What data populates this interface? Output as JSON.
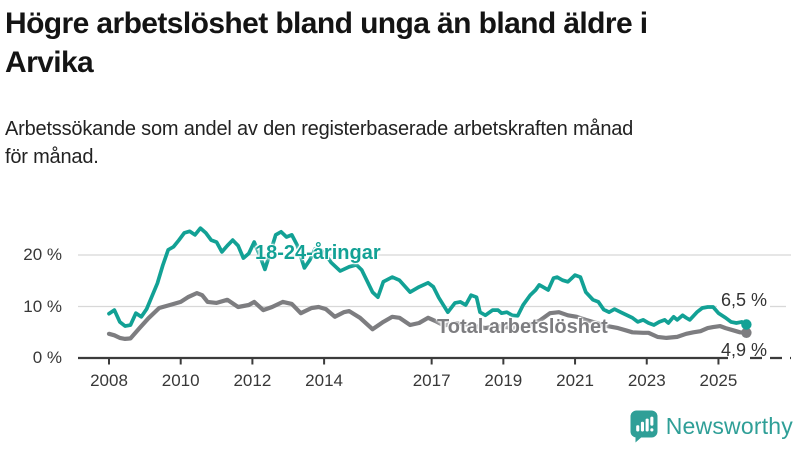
{
  "page": {
    "title_lines": [
      "Högre arbetslöshet bland unga än bland äldre i",
      "Arvika"
    ],
    "subtitle_lines": [
      "Arbetssökande som andel av den registerbaserade arbetskraften månad",
      "för månad."
    ]
  },
  "branding": {
    "logo_text": "Newsworthy",
    "logo_icon": "bar-chart-speech-bubble",
    "brand_color": "#2f9f97"
  },
  "colors": {
    "young_series": "#12a195",
    "total_series": "#7d7d80",
    "axis": "#3b3b3b",
    "grid": "#d8d8d8",
    "label_text": "#383838"
  },
  "chart_data": {
    "type": "line",
    "title": "Högre arbetslöshet bland unga än bland äldre i Arvika",
    "subtitle": "Arbetssökande som andel av den registerbaserade arbetskraften månad för månad.",
    "xlabel": "",
    "ylabel": "",
    "grid": true,
    "legend_position": "inline-labels",
    "x_range": [
      2007.1,
      2027.0
    ],
    "y_range": [
      0,
      29
    ],
    "x_ticks": [
      {
        "label": "2008",
        "year": 2008
      },
      {
        "label": "2010",
        "year": 2010
      },
      {
        "label": "2012",
        "year": 2012
      },
      {
        "label": "2014",
        "year": 2014
      },
      {
        "label": "2017",
        "year": 2017
      },
      {
        "label": "2019",
        "year": 2019
      },
      {
        "label": "2021",
        "year": 2021
      },
      {
        "label": "2023",
        "year": 2023
      },
      {
        "label": "2025",
        "year": 2025
      }
    ],
    "y_ticks": [
      {
        "label": "0 %",
        "value": 0
      },
      {
        "label": "10 %",
        "value": 10
      },
      {
        "label": "20 %",
        "value": 20
      }
    ],
    "series": [
      {
        "name": "Total arbetslöshet",
        "color": "#7d7d80",
        "end_label": "4,9 %",
        "end_value": 4.9,
        "points": [
          [
            2008.0,
            4.7
          ],
          [
            2008.15,
            4.4
          ],
          [
            2008.3,
            3.9
          ],
          [
            2008.45,
            3.7
          ],
          [
            2008.6,
            3.8
          ],
          [
            2008.85,
            5.8
          ],
          [
            2009.1,
            7.7
          ],
          [
            2009.4,
            9.7
          ],
          [
            2009.7,
            10.3
          ],
          [
            2010.0,
            10.9
          ],
          [
            2010.2,
            11.8
          ],
          [
            2010.45,
            12.6
          ],
          [
            2010.6,
            12.2
          ],
          [
            2010.75,
            10.9
          ],
          [
            2011.0,
            10.7
          ],
          [
            2011.3,
            11.3
          ],
          [
            2011.6,
            9.9
          ],
          [
            2011.9,
            10.3
          ],
          [
            2012.05,
            10.9
          ],
          [
            2012.3,
            9.3
          ],
          [
            2012.55,
            9.9
          ],
          [
            2012.85,
            10.9
          ],
          [
            2013.1,
            10.5
          ],
          [
            2013.35,
            8.7
          ],
          [
            2013.65,
            9.7
          ],
          [
            2013.85,
            9.9
          ],
          [
            2014.05,
            9.5
          ],
          [
            2014.3,
            8.0
          ],
          [
            2014.55,
            8.9
          ],
          [
            2014.7,
            9.1
          ],
          [
            2015.0,
            7.8
          ],
          [
            2015.35,
            5.6
          ],
          [
            2015.65,
            7.0
          ],
          [
            2015.9,
            8.0
          ],
          [
            2016.1,
            7.8
          ],
          [
            2016.4,
            6.4
          ],
          [
            2016.65,
            6.8
          ],
          [
            2016.9,
            7.8
          ],
          [
            2017.1,
            7.2
          ],
          [
            2017.35,
            6.3
          ],
          [
            2017.6,
            6.8
          ],
          [
            2017.9,
            6.6
          ],
          [
            2018.2,
            6.2
          ],
          [
            2018.5,
            5.8
          ],
          [
            2018.8,
            6.2
          ],
          [
            2019.1,
            6.0
          ],
          [
            2019.4,
            5.8
          ],
          [
            2019.7,
            6.4
          ],
          [
            2020.0,
            7.2
          ],
          [
            2020.3,
            8.7
          ],
          [
            2020.55,
            8.9
          ],
          [
            2020.8,
            8.3
          ],
          [
            2021.05,
            8.0
          ],
          [
            2021.3,
            7.4
          ],
          [
            2021.6,
            6.8
          ],
          [
            2021.9,
            6.2
          ],
          [
            2022.2,
            5.8
          ],
          [
            2022.45,
            5.3
          ],
          [
            2022.6,
            5.0
          ],
          [
            2022.9,
            4.9
          ],
          [
            2023.05,
            4.9
          ],
          [
            2023.3,
            4.1
          ],
          [
            2023.55,
            3.9
          ],
          [
            2023.85,
            4.1
          ],
          [
            2024.1,
            4.7
          ],
          [
            2024.3,
            5.0
          ],
          [
            2024.5,
            5.2
          ],
          [
            2024.7,
            5.8
          ],
          [
            2024.85,
            6.0
          ],
          [
            2025.05,
            6.2
          ],
          [
            2025.2,
            5.8
          ],
          [
            2025.4,
            5.4
          ],
          [
            2025.6,
            5.0
          ],
          [
            2025.78,
            4.9
          ]
        ]
      },
      {
        "name": "18-24-åringar",
        "color": "#12a195",
        "end_label": "6,5 %",
        "end_value": 6.5,
        "points": [
          [
            2008.0,
            8.6
          ],
          [
            2008.15,
            9.3
          ],
          [
            2008.3,
            7.0
          ],
          [
            2008.45,
            6.2
          ],
          [
            2008.6,
            6.4
          ],
          [
            2008.75,
            8.7
          ],
          [
            2008.9,
            8.0
          ],
          [
            2009.05,
            9.5
          ],
          [
            2009.2,
            12.0
          ],
          [
            2009.35,
            14.5
          ],
          [
            2009.5,
            18.0
          ],
          [
            2009.65,
            21.0
          ],
          [
            2009.8,
            21.6
          ],
          [
            2009.95,
            22.9
          ],
          [
            2010.1,
            24.3
          ],
          [
            2010.25,
            24.6
          ],
          [
            2010.4,
            23.9
          ],
          [
            2010.55,
            25.2
          ],
          [
            2010.7,
            24.3
          ],
          [
            2010.85,
            22.9
          ],
          [
            2011.0,
            22.5
          ],
          [
            2011.15,
            20.6
          ],
          [
            2011.3,
            21.8
          ],
          [
            2011.45,
            22.9
          ],
          [
            2011.6,
            21.8
          ],
          [
            2011.75,
            19.4
          ],
          [
            2011.9,
            20.3
          ],
          [
            2012.05,
            22.5
          ],
          [
            2012.2,
            20.0
          ],
          [
            2012.35,
            17.2
          ],
          [
            2012.5,
            20.5
          ],
          [
            2012.65,
            23.9
          ],
          [
            2012.8,
            24.5
          ],
          [
            2012.95,
            23.5
          ],
          [
            2013.1,
            23.9
          ],
          [
            2013.25,
            21.9
          ],
          [
            2013.45,
            17.5
          ],
          [
            2013.6,
            19.0
          ],
          [
            2013.75,
            21.2
          ],
          [
            2013.9,
            21.0
          ],
          [
            2014.05,
            20.0
          ],
          [
            2014.2,
            18.5
          ],
          [
            2014.45,
            16.9
          ],
          [
            2014.7,
            17.7
          ],
          [
            2014.9,
            18.1
          ],
          [
            2015.05,
            17.1
          ],
          [
            2015.35,
            12.8
          ],
          [
            2015.5,
            11.8
          ],
          [
            2015.65,
            14.8
          ],
          [
            2015.9,
            15.7
          ],
          [
            2016.1,
            15.1
          ],
          [
            2016.4,
            12.8
          ],
          [
            2016.65,
            13.8
          ],
          [
            2016.9,
            14.6
          ],
          [
            2017.05,
            13.8
          ],
          [
            2017.2,
            11.7
          ],
          [
            2017.45,
            8.9
          ],
          [
            2017.65,
            10.7
          ],
          [
            2017.8,
            10.9
          ],
          [
            2017.95,
            10.3
          ],
          [
            2018.1,
            12.2
          ],
          [
            2018.25,
            11.8
          ],
          [
            2018.35,
            8.9
          ],
          [
            2018.5,
            8.3
          ],
          [
            2018.7,
            9.3
          ],
          [
            2018.85,
            9.3
          ],
          [
            2018.95,
            8.7
          ],
          [
            2019.1,
            8.9
          ],
          [
            2019.25,
            8.3
          ],
          [
            2019.4,
            8.2
          ],
          [
            2019.55,
            10.3
          ],
          [
            2019.75,
            12.2
          ],
          [
            2019.9,
            13.2
          ],
          [
            2020.0,
            14.2
          ],
          [
            2020.1,
            13.8
          ],
          [
            2020.25,
            13.2
          ],
          [
            2020.4,
            15.5
          ],
          [
            2020.5,
            15.7
          ],
          [
            2020.65,
            15.1
          ],
          [
            2020.8,
            14.8
          ],
          [
            2021.0,
            16.1
          ],
          [
            2021.15,
            15.7
          ],
          [
            2021.3,
            12.8
          ],
          [
            2021.5,
            11.3
          ],
          [
            2021.65,
            10.9
          ],
          [
            2021.8,
            9.4
          ],
          [
            2021.95,
            8.9
          ],
          [
            2022.1,
            9.5
          ],
          [
            2022.3,
            8.8
          ],
          [
            2022.6,
            7.8
          ],
          [
            2022.75,
            7.0
          ],
          [
            2022.9,
            7.4
          ],
          [
            2023.05,
            6.8
          ],
          [
            2023.2,
            6.4
          ],
          [
            2023.35,
            7.0
          ],
          [
            2023.5,
            7.4
          ],
          [
            2023.6,
            6.8
          ],
          [
            2023.75,
            8.0
          ],
          [
            2023.85,
            7.4
          ],
          [
            2024.0,
            8.3
          ],
          [
            2024.1,
            7.8
          ],
          [
            2024.2,
            7.4
          ],
          [
            2024.4,
            8.9
          ],
          [
            2024.55,
            9.7
          ],
          [
            2024.7,
            9.9
          ],
          [
            2024.85,
            9.9
          ],
          [
            2025.0,
            8.7
          ],
          [
            2025.2,
            7.8
          ],
          [
            2025.35,
            7.0
          ],
          [
            2025.5,
            6.8
          ],
          [
            2025.65,
            7.0
          ],
          [
            2025.78,
            6.5
          ]
        ]
      }
    ]
  }
}
